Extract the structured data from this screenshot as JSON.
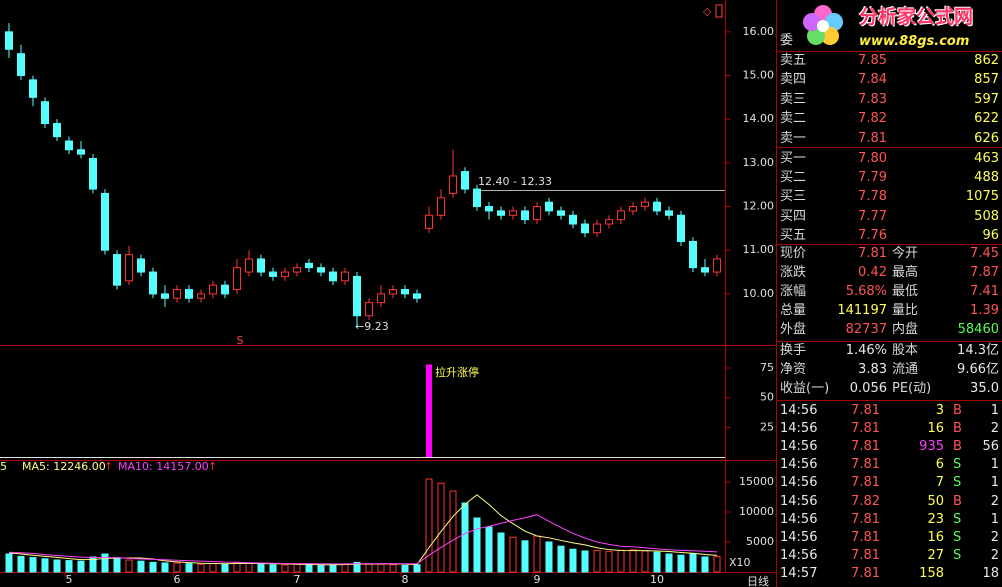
{
  "chart_data": {
    "type": "candlestick",
    "period": "日线",
    "categories": [
      null,
      null,
      null,
      null,
      null,
      "5",
      null,
      null,
      null,
      null,
      null,
      null,
      null,
      null,
      "6",
      null,
      null,
      null,
      null,
      null,
      null,
      null,
      null,
      null,
      "7",
      null,
      null,
      null,
      null,
      null,
      null,
      null,
      null,
      "8",
      null,
      null,
      null,
      null,
      null,
      null,
      null,
      null,
      null,
      null,
      "9",
      null,
      null,
      null,
      null,
      null,
      null,
      null,
      null,
      null,
      "10",
      null,
      null,
      null,
      null,
      null
    ],
    "ylim": [
      8.83,
      16.66
    ],
    "yticks": [
      {
        "value": 10,
        "label": "10.00"
      },
      {
        "value": 11,
        "label": "11.00"
      },
      {
        "value": 12,
        "label": "12.00"
      },
      {
        "value": 13,
        "label": "13.00"
      },
      {
        "value": 14,
        "label": "14.00"
      },
      {
        "value": 15,
        "label": "15.00"
      },
      {
        "value": 16,
        "label": "16.00"
      }
    ],
    "open": [
      16.0,
      15.5,
      14.9,
      14.4,
      13.9,
      13.5,
      13.3,
      13.1,
      12.3,
      10.9,
      10.3,
      10.8,
      10.5,
      10.0,
      9.9,
      10.1,
      9.9,
      10.0,
      10.2,
      10.1,
      10.5,
      10.8,
      10.5,
      10.4,
      10.5,
      10.7,
      10.6,
      10.5,
      10.3,
      10.4,
      9.5,
      9.8,
      10.0,
      10.1,
      10.0,
      11.5,
      11.8,
      12.3,
      12.8,
      12.4,
      12.0,
      11.9,
      11.8,
      11.9,
      11.7,
      12.1,
      11.9,
      11.8,
      11.6,
      11.4,
      11.6,
      11.7,
      11.9,
      12.0,
      12.1,
      11.9,
      11.8,
      11.2,
      10.6,
      10.5
    ],
    "close": [
      15.6,
      15.0,
      14.5,
      13.9,
      13.6,
      13.3,
      13.2,
      12.4,
      11.0,
      10.2,
      10.9,
      10.5,
      10.0,
      9.9,
      10.1,
      9.9,
      10.0,
      10.2,
      10.0,
      10.6,
      10.8,
      10.5,
      10.4,
      10.5,
      10.6,
      10.6,
      10.5,
      10.3,
      10.5,
      9.5,
      9.8,
      10.0,
      10.1,
      10.0,
      9.9,
      11.8,
      12.2,
      12.7,
      12.4,
      12.0,
      11.9,
      11.8,
      11.9,
      11.7,
      12.0,
      11.9,
      11.8,
      11.6,
      11.4,
      11.6,
      11.7,
      11.9,
      12.0,
      12.1,
      11.9,
      11.8,
      11.2,
      10.6,
      10.5,
      10.8
    ],
    "high": [
      16.2,
      15.7,
      15.0,
      14.5,
      14.0,
      13.6,
      13.5,
      13.2,
      12.4,
      11.0,
      11.1,
      10.9,
      10.6,
      10.2,
      10.2,
      10.2,
      10.1,
      10.3,
      10.3,
      10.8,
      11.0,
      10.9,
      10.6,
      10.6,
      10.7,
      10.8,
      10.7,
      10.6,
      10.6,
      10.5,
      9.9,
      10.2,
      10.2,
      10.2,
      10.1,
      12.0,
      12.4,
      13.3,
      12.9,
      12.5,
      12.1,
      12.0,
      12.0,
      12.0,
      12.1,
      12.2,
      12.0,
      11.9,
      11.7,
      11.7,
      11.8,
      12.0,
      12.1,
      12.2,
      12.2,
      12.0,
      11.9,
      11.3,
      10.8,
      10.9
    ],
    "low": [
      15.4,
      14.9,
      14.3,
      13.8,
      13.5,
      13.2,
      13.1,
      12.3,
      10.9,
      10.1,
      10.2,
      10.4,
      9.9,
      9.7,
      9.8,
      9.8,
      9.8,
      9.9,
      9.9,
      10.0,
      10.4,
      10.4,
      10.3,
      10.3,
      10.4,
      10.5,
      10.4,
      10.2,
      10.2,
      9.23,
      9.4,
      9.7,
      9.9,
      9.9,
      9.8,
      11.4,
      11.7,
      12.2,
      12.3,
      11.9,
      11.7,
      11.7,
      11.7,
      11.6,
      11.6,
      11.8,
      11.7,
      11.5,
      11.3,
      11.3,
      11.5,
      11.6,
      11.8,
      11.9,
      11.8,
      11.7,
      11.1,
      10.5,
      10.4,
      10.4
    ],
    "up_color": "#ff3232",
    "down_color": "#54ffff",
    "annotations": {
      "range_label": "12.40 - 12.33",
      "low_label": "←9.23",
      "marker": "S"
    },
    "indicator": {
      "label": "拉升涨停",
      "color": "#ff00ff",
      "ylim": [
        0,
        92.7
      ],
      "yticks": [
        25,
        50,
        75
      ],
      "values": [
        null,
        null,
        null,
        null,
        null,
        null,
        null,
        null,
        null,
        null,
        null,
        null,
        null,
        null,
        null,
        null,
        null,
        null,
        null,
        null,
        null,
        null,
        null,
        null,
        null,
        null,
        null,
        null,
        null,
        null,
        null,
        null,
        null,
        null,
        null,
        78,
        null,
        null,
        null,
        null,
        null,
        null,
        null,
        null,
        null,
        null,
        null,
        null,
        null,
        null,
        null,
        null,
        null,
        null,
        null,
        null,
        null,
        null,
        null,
        null
      ]
    },
    "volume": {
      "header": "5",
      "ma5_label": "MA5: 12246.00",
      "ma10_label": "MA10: 14157.00",
      "scale_label": "X10",
      "ylim": [
        0,
        16670
      ],
      "yticks": [
        5000,
        10000,
        15000
      ],
      "values": [
        3000,
        2600,
        2400,
        2200,
        2000,
        1900,
        1800,
        2500,
        3000,
        2400,
        2000,
        1800,
        1600,
        1500,
        1500,
        1400,
        1300,
        1400,
        1300,
        1600,
        1500,
        1300,
        1200,
        1200,
        1300,
        1200,
        1100,
        1200,
        1300,
        1600,
        1400,
        1300,
        1200,
        1100,
        1200,
        15500,
        14800,
        13500,
        11500,
        9000,
        7500,
        6500,
        5800,
        5200,
        6000,
        5000,
        4300,
        3800,
        3500,
        3600,
        3400,
        3600,
        3700,
        3500,
        3300,
        3000,
        2800,
        3000,
        2500,
        2600
      ],
      "ma5": [
        3200,
        3000,
        2800,
        2600,
        2440,
        2220,
        2060,
        2080,
        2240,
        2320,
        2340,
        2340,
        2160,
        1860,
        1680,
        1560,
        1460,
        1420,
        1380,
        1420,
        1420,
        1420,
        1380,
        1360,
        1300,
        1240,
        1200,
        1200,
        1220,
        1320,
        1320,
        1360,
        1360,
        1320,
        1240,
        4060,
        6760,
        9260,
        11300,
        12860,
        11260,
        9400,
        8060,
        6800,
        6000,
        5700,
        5260,
        4860,
        4520,
        4040,
        3720,
        3580,
        3560,
        3560,
        3500,
        3420,
        3260,
        3120,
        2920,
        2780
      ],
      "ma10": [
        3300,
        3200,
        3100,
        2900,
        2750,
        2600,
        2480,
        2420,
        2400,
        2380,
        2280,
        2170,
        2110,
        2050,
        1960,
        1880,
        1810,
        1740,
        1650,
        1620,
        1550,
        1490,
        1450,
        1420,
        1400,
        1390,
        1370,
        1350,
        1350,
        1370,
        1370,
        1390,
        1390,
        1380,
        1370,
        2800,
        4100,
        5300,
        6400,
        7200,
        7600,
        8100,
        8600,
        9050,
        9550,
        8450,
        7400,
        6450,
        5650,
        5000,
        4600,
        4300,
        4200,
        4050,
        3850,
        3700,
        3600,
        3550,
        3450,
        3350
      ],
      "ma5_color": "#ffff80",
      "ma10_color": "#ff40ff"
    }
  },
  "quote_panel": {
    "logo": {
      "name": "分析家公式网",
      "url": "www.88gs.com"
    },
    "weibi_label": "委",
    "order_book": [
      {
        "label": "卖五",
        "price": "7.85",
        "volume": "862"
      },
      {
        "label": "卖四",
        "price": "7.84",
        "volume": "857"
      },
      {
        "label": "卖三",
        "price": "7.83",
        "volume": "597"
      },
      {
        "label": "卖二",
        "price": "7.82",
        "volume": "622"
      },
      {
        "label": "卖一",
        "price": "7.81",
        "volume": "626"
      },
      {
        "label": "买一",
        "price": "7.80",
        "volume": "463"
      },
      {
        "label": "买二",
        "price": "7.79",
        "volume": "488"
      },
      {
        "label": "买三",
        "price": "7.78",
        "volume": "1075"
      },
      {
        "label": "买四",
        "price": "7.77",
        "volume": "508"
      },
      {
        "label": "买五",
        "price": "7.76",
        "volume": "96"
      }
    ],
    "stats": [
      [
        "现价",
        "7.81",
        "今开",
        "7.45"
      ],
      [
        "涨跌",
        "0.42",
        "最高",
        "7.87"
      ],
      [
        "涨幅",
        "5.68%",
        "最低",
        "7.41"
      ],
      [
        "总量",
        "141197",
        "量比",
        "1.39"
      ],
      [
        "外盘",
        "82737",
        "内盘",
        "58460"
      ],
      [
        "换手",
        "1.46%",
        "股本",
        "14.3亿"
      ],
      [
        "净资",
        "3.83",
        "流通",
        "9.66亿"
      ],
      [
        "收益(一)",
        "0.056",
        "PE(动)",
        "35.0"
      ]
    ],
    "ticks": [
      {
        "time": "14:56",
        "price": "7.81",
        "volume": "3",
        "side": "B",
        "count": "1"
      },
      {
        "time": "14:56",
        "price": "7.81",
        "volume": "16",
        "side": "B",
        "count": "2"
      },
      {
        "time": "14:56",
        "price": "7.81",
        "volume": "935",
        "side": "B",
        "count": "56"
      },
      {
        "time": "14:56",
        "price": "7.81",
        "volume": "6",
        "side": "S",
        "count": "1"
      },
      {
        "time": "14:56",
        "price": "7.81",
        "volume": "7",
        "side": "S",
        "count": "1"
      },
      {
        "time": "14:56",
        "price": "7.82",
        "volume": "50",
        "side": "B",
        "count": "2"
      },
      {
        "time": "14:56",
        "price": "7.81",
        "volume": "23",
        "side": "S",
        "count": "1"
      },
      {
        "time": "14:56",
        "price": "7.81",
        "volume": "16",
        "side": "S",
        "count": "2"
      },
      {
        "time": "14:56",
        "price": "7.81",
        "volume": "27",
        "side": "S",
        "count": "2"
      },
      {
        "time": "14:57",
        "price": "7.81",
        "volume": "158",
        "count": "18"
      }
    ]
  }
}
